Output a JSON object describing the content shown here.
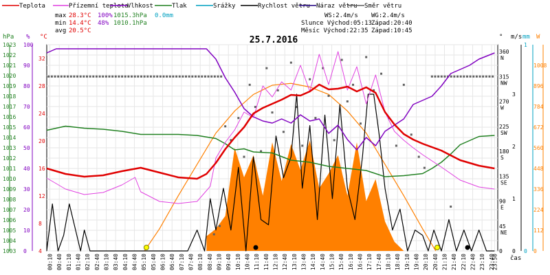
{
  "legend": [
    {
      "label": "Teplota",
      "color": "#e00000"
    },
    {
      "label": "Přízemní teplota",
      "color": "#e040e0"
    },
    {
      "label": "Vlhkost",
      "color": "#8000c0"
    },
    {
      "label": "Tlak",
      "color": "#208020"
    },
    {
      "label": "Srážky",
      "color": "#00a0c0"
    },
    {
      "label": "Rychlost větru",
      "color": "#000000"
    },
    {
      "label": "Náraz větru",
      "color": "#200080"
    },
    {
      "label": "Směr větru",
      "color": "#606060"
    }
  ],
  "stats": {
    "max_label": "max",
    "max_temp": "28.3°C",
    "max_hum": "100%",
    "max_press": "1015.3hPa",
    "max_rain": "0.0mm",
    "min_label": "min",
    "min_temp": "14.4°C",
    "min_hum": "48%",
    "min_press": "1010.1hPa",
    "avg_label": "avg",
    "avg_temp": "20.5°C"
  },
  "wind_summary": {
    "ws": "WS:2.4m/s",
    "wg": "WG:2.4m/s"
  },
  "sun_moon": {
    "sun": "Slunce Východ:05:13",
    "sun_set": "Západ:20:40",
    "moon": "Měsíc  Východ:22:35",
    "moon_set": "Západ:10:45"
  },
  "date": "25.7.2016",
  "axis_units": {
    "hpa": "hPa",
    "percent": "%",
    "celsius": "°C",
    "degree": "°",
    "ms": "m/s",
    "mm": "mm",
    "wm2": "W",
    "time": "čas"
  },
  "colors": {
    "temperature": "#e00000",
    "ground_temp": "#e040e0",
    "humidity": "#8000c0",
    "pressure": "#208020",
    "rain": "#00a0c0",
    "wind_speed": "#000000",
    "gust": "#200080",
    "direction": "#606060",
    "solar": "#ff8000",
    "solar_curve": "#ff8000"
  },
  "chart_data": {
    "type": "line",
    "title": "25.7.2016",
    "x_ticks": [
      "00:10",
      "00:40",
      "01:10",
      "01:40",
      "02:10",
      "02:40",
      "03:10",
      "03:40",
      "04:10",
      "04:40",
      "05:10",
      "05:40",
      "06:10",
      "06:40",
      "07:10",
      "07:40",
      "08:10",
      "08:40",
      "09:10",
      "09:40",
      "10:10",
      "10:40",
      "11:10",
      "11:40",
      "12:10",
      "12:40",
      "13:10",
      "13:40",
      "14:10",
      "14:40",
      "15:10",
      "15:40",
      "16:10",
      "16:40",
      "17:10",
      "17:40",
      "18:10",
      "18:40",
      "19:10",
      "19:40",
      "20:10",
      "20:40",
      "21:10",
      "21:40",
      "22:10",
      "22:40",
      "23:10",
      "23:40",
      "23:50"
    ],
    "left_axes": {
      "pressure_hpa": [
        "1003",
        "1004",
        "1005",
        "1006",
        "1007",
        "1008",
        "1009",
        "1010",
        "1011",
        "1012",
        "1013",
        "1014",
        "1015",
        "1016",
        "1017",
        "1018",
        "1019",
        "1020",
        "1021",
        "1022",
        "1023"
      ],
      "humidity_percent": [
        "0",
        "10",
        "20",
        "30",
        "40",
        "50",
        "60",
        "70",
        "80",
        "90",
        "100"
      ],
      "temperature_c": [
        "4",
        "8",
        "12",
        "16",
        "20",
        "24",
        "28",
        "32"
      ]
    },
    "right_axes": {
      "direction_deg": [
        "0",
        "45",
        "90",
        "135",
        "180",
        "225",
        "270",
        "315",
        "360"
      ],
      "direction_labels": [
        "",
        "NE",
        "E",
        "SE",
        "S",
        "SW",
        "W",
        "NW",
        "N"
      ],
      "wind_ms": [
        "0",
        "1",
        "2",
        "3"
      ],
      "rain_mm": [
        "0",
        "1"
      ],
      "solar_wm2": [
        "0",
        "112",
        "224",
        "336",
        "448",
        "560",
        "672",
        "784",
        "896",
        "1008"
      ]
    },
    "series": [
      {
        "name": "Teplota",
        "unit": "°C",
        "x": [
          0,
          1,
          2,
          3,
          4,
          5,
          6,
          7,
          8,
          8.5,
          9,
          9.5,
          10,
          10.5,
          11,
          11.5,
          12,
          12.5,
          13,
          13.5,
          14,
          14.5,
          15,
          15.5,
          16,
          16.5,
          17,
          17.5,
          18,
          18.5,
          19,
          19.5,
          20,
          21,
          22,
          23,
          23.83
        ],
        "values": [
          16,
          15.2,
          14.8,
          15,
          15.6,
          16.1,
          15.4,
          14.7,
          14.5,
          15.2,
          16.8,
          18.8,
          20.5,
          22,
          24,
          24.8,
          25.4,
          26,
          26.7,
          26.6,
          27.2,
          28.2,
          27.5,
          27.6,
          27.9,
          27.2,
          27.8,
          27,
          24.2,
          22.4,
          21,
          20.2,
          19.6,
          18.6,
          17.2,
          16.4,
          16
        ]
      },
      {
        "name": "Přízemní teplota",
        "unit": "°C",
        "x": [
          0,
          1,
          2,
          3,
          4,
          4.7,
          5,
          6,
          7,
          8,
          8.7,
          9,
          9.5,
          10,
          10.5,
          11,
          11.5,
          12,
          12.5,
          13,
          13.5,
          14,
          14.5,
          15,
          15.5,
          16,
          16.5,
          17,
          17.5,
          18,
          18.5,
          19,
          19.5,
          20,
          21,
          22,
          23,
          23.83
        ],
        "values": [
          14.6,
          13,
          12.2,
          12.5,
          13.6,
          14.7,
          12.6,
          11.2,
          10.9,
          11.2,
          13.4,
          17.5,
          19.8,
          21.6,
          24.2,
          23.4,
          28,
          26.4,
          28.6,
          27.4,
          31,
          27.2,
          32.6,
          28.2,
          33,
          27.4,
          30.8,
          25.4,
          29.6,
          24.2,
          21.4,
          20.1,
          19,
          18,
          16.2,
          14.3,
          13.3,
          13
        ]
      },
      {
        "name": "Vlhkost",
        "unit": "%",
        "x": [
          0,
          0.5,
          8.5,
          9,
          9.5,
          10,
          10.5,
          11,
          11.5,
          12,
          12.5,
          13,
          13.5,
          14,
          14.5,
          15,
          15.5,
          16,
          16.5,
          17,
          17.5,
          18,
          18.5,
          19,
          19.5,
          20,
          20.5,
          21,
          21.5,
          22,
          22.5,
          23,
          23.83
        ],
        "values": [
          96,
          98,
          98,
          93,
          84,
          77,
          69,
          65,
          63,
          62,
          64,
          62,
          66,
          63,
          64,
          57,
          61,
          54,
          49,
          55,
          51,
          58,
          61,
          64,
          71,
          73,
          75,
          80,
          86,
          88,
          90,
          93,
          96
        ]
      },
      {
        "name": "Tlak",
        "unit": "hPa",
        "x": [
          0,
          1,
          2,
          3,
          4,
          5,
          6,
          7,
          8,
          9,
          9.5,
          10,
          10.5,
          11,
          12,
          13,
          14,
          15,
          16,
          17,
          18,
          19,
          20,
          20.5,
          21,
          21.5,
          22,
          22.5,
          23,
          23.83
        ],
        "values": [
          1014.7,
          1015.1,
          1014.9,
          1014.8,
          1014.6,
          1014.3,
          1014.3,
          1014.3,
          1014.2,
          1013.9,
          1013.4,
          1012.8,
          1012.9,
          1012.6,
          1012.5,
          1011.8,
          1011.6,
          1011.2,
          1011,
          1010.8,
          1010.2,
          1010.3,
          1010.5,
          1011,
          1011.6,
          1012.4,
          1013.3,
          1013.7,
          1014.1,
          1014.2
        ]
      },
      {
        "name": "Rychlost větru",
        "unit": "m/s",
        "x": [
          0,
          0.3,
          0.6,
          0.9,
          1.2,
          1.8,
          2,
          2.3,
          3.5,
          7.5,
          8,
          8.4,
          8.7,
          9,
          9.4,
          9.8,
          10.2,
          10.6,
          11,
          11.4,
          11.8,
          12.2,
          12.6,
          13,
          13.3,
          13.6,
          14,
          14.4,
          14.8,
          15.2,
          15.6,
          16,
          16.4,
          16.8,
          17.1,
          17.4,
          17.7,
          18,
          18.4,
          18.8,
          19.2,
          19.6,
          20,
          20.3,
          20.6,
          21,
          21.4,
          21.8,
          22.2,
          22.6,
          23,
          23.4,
          23.83
        ],
        "values": [
          0,
          0.9,
          0,
          0.3,
          0.9,
          0,
          0.4,
          0,
          0,
          0,
          0.4,
          0,
          1,
          0.4,
          1.2,
          0.4,
          1.6,
          0,
          1.8,
          0.6,
          0.5,
          2.2,
          1.4,
          1.8,
          3,
          1.2,
          2.4,
          0.6,
          2.6,
          1,
          2.8,
          1.2,
          0.6,
          1.8,
          3,
          3,
          2.2,
          1.2,
          0.4,
          0.8,
          0,
          0.4,
          0.3,
          0,
          0.4,
          0,
          0.6,
          0,
          0.4,
          0,
          0.4,
          0,
          0
        ]
      },
      {
        "name": "Solar",
        "unit": "W/m²",
        "x": [
          8.5,
          9,
          9.5,
          10,
          10.5,
          11,
          11.5,
          12,
          12.5,
          13,
          13.5,
          14,
          14.5,
          15,
          15.5,
          16,
          16.5,
          17,
          17.5,
          18,
          18.5,
          19
        ],
        "values": [
          80,
          120,
          190,
          560,
          400,
          520,
          300,
          590,
          380,
          580,
          440,
          600,
          340,
          420,
          520,
          300,
          590,
          270,
          390,
          160,
          50,
          0
        ]
      },
      {
        "name": "Solar max",
        "unit": "W/m²",
        "x": [
          5.2,
          6,
          7,
          8,
          9,
          10,
          11,
          12,
          13,
          14,
          15,
          16,
          17,
          18,
          19,
          20,
          20.7
        ],
        "values": [
          0,
          120,
          300,
          470,
          640,
          760,
          850,
          900,
          910,
          890,
          850,
          760,
          640,
          470,
          300,
          120,
          0
        ]
      }
    ],
    "direction_points_note": "scattered wind direction markers"
  }
}
